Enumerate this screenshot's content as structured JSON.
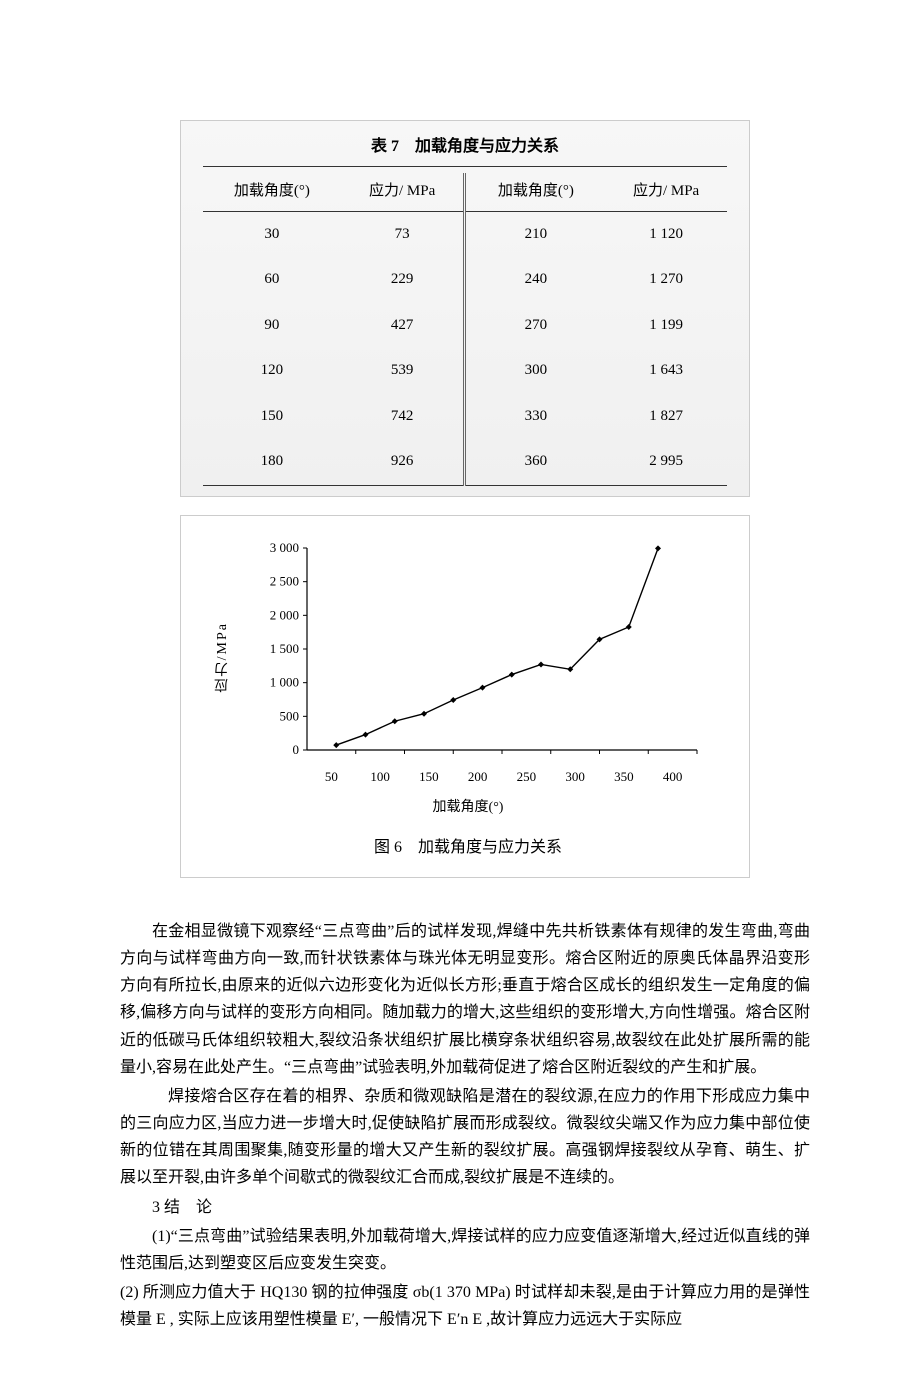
{
  "table": {
    "title": "表 7　加载角度与应力关系",
    "headers": [
      "加载角度(°)",
      "应力/ MPa",
      "加载角度(°)",
      "应力/ MPa"
    ],
    "rows": [
      [
        "30",
        "73",
        "210",
        "1 120"
      ],
      [
        "60",
        "229",
        "240",
        "1 270"
      ],
      [
        "90",
        "427",
        "270",
        "1 199"
      ],
      [
        "120",
        "539",
        "300",
        "1 643"
      ],
      [
        "150",
        "742",
        "330",
        "1 827"
      ],
      [
        "180",
        "926",
        "360",
        "2 995"
      ]
    ]
  },
  "chart": {
    "type": "line",
    "ylabel": "应力/MPa",
    "xlabel": "加载角度(°)",
    "caption": "图 6　加载角度与应力关系",
    "yticks": [
      "3 000",
      "2 500",
      "2 000",
      "1 500",
      "1 000",
      "500",
      "0"
    ],
    "xticks": [
      "50",
      "100",
      "150",
      "200",
      "250",
      "300",
      "350",
      "400"
    ],
    "ylim": [
      0,
      3000
    ],
    "xlim": [
      0,
      400
    ],
    "grid": false,
    "background_color": "#ffffff",
    "line_color": "#000000",
    "line_width": 1.4,
    "marker": "diamond",
    "marker_size": 6,
    "points": [
      {
        "x": 30,
        "y": 73
      },
      {
        "x": 60,
        "y": 229
      },
      {
        "x": 90,
        "y": 427
      },
      {
        "x": 120,
        "y": 539
      },
      {
        "x": 150,
        "y": 742
      },
      {
        "x": 180,
        "y": 926
      },
      {
        "x": 210,
        "y": 1120
      },
      {
        "x": 240,
        "y": 1270
      },
      {
        "x": 270,
        "y": 1199
      },
      {
        "x": 300,
        "y": 1643
      },
      {
        "x": 330,
        "y": 1827
      },
      {
        "x": 360,
        "y": 2995
      }
    ],
    "axis_color": "#000000",
    "tick_fontsize": 13,
    "label_fontsize": 14
  },
  "body": {
    "p1": "在金相显微镜下观察经“三点弯曲”后的试样发现,焊缝中先共析铁素体有规律的发生弯曲,弯曲方向与试样弯曲方向一致,而针状铁素体与珠光体无明显变形。熔合区附近的原奥氏体晶界沿变形方向有所拉长,由原来的近似六边形变化为近似长方形;垂直于熔合区成长的组织发生一定角度的偏移,偏移方向与试样的变形方向相同。随加载力的增大,这些组织的变形增大,方向性增强。熔合区附近的低碳马氏体组织较粗大,裂纹沿条状组织扩展比横穿条状组织容易,故裂纹在此处扩展所需的能量小,容易在此处产生。“三点弯曲”试验表明,外加载荷促进了熔合区附近裂纹的产生和扩展。",
    "p2": "焊接熔合区存在着的相界、杂质和微观缺陷是潜在的裂纹源,在应力的作用下形成应力集中的三向应力区,当应力进一步增大时,促使缺陷扩展而形成裂纹。微裂纹尖端又作为应力集中部位使新的位错在其周围聚集,随变形量的增大又产生新的裂纹扩展。高强钢焊接裂纹从孕育、萌生、扩展以至开裂,由许多单个间歇式的微裂纹汇合而成,裂纹扩展是不连续的。",
    "heading": "3 结　论",
    "p3": "(1)“三点弯曲”试验结果表明,外加载荷增大,焊接试样的应力应变值逐渐增大,经过近似直线的弹性范围后,达到塑变区后应变发生突变。",
    "p4": "(2) 所测应力值大于 HQ130 钢的拉伸强度 σb(1 370 MPa) 时试样却未裂,是由于计算应力用的是弹性模量 E ,  实际上应该用塑性模量 E′,  一般情况下 E′n E ,故计算应力远远大于实际应"
  }
}
